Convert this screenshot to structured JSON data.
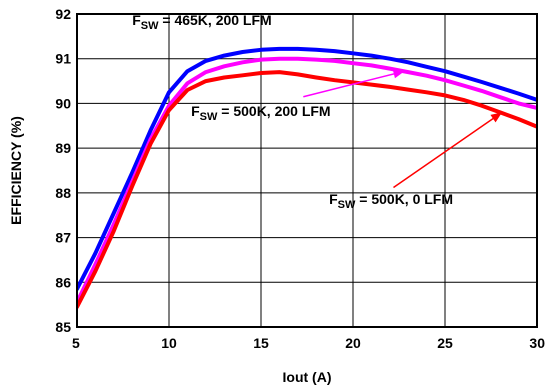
{
  "chart_data": {
    "type": "line",
    "xlabel": "Iout (A)",
    "ylabel": "EFFICIENCY (%)",
    "xlim": [
      5,
      30
    ],
    "ylim": [
      85,
      92
    ],
    "xticks": [
      5,
      10,
      15,
      20,
      25,
      30
    ],
    "yticks": [
      85,
      86,
      87,
      88,
      89,
      90,
      91,
      92
    ],
    "grid": true,
    "series": [
      {
        "name": "FSW = 465K, 200 LFM",
        "color": "#0000ff",
        "x": [
          5,
          6,
          7,
          8,
          9,
          10,
          11,
          12,
          13,
          14,
          15,
          16,
          17,
          18,
          19,
          20,
          21,
          22,
          23,
          24,
          25,
          26,
          27,
          28,
          29,
          30
        ],
        "y": [
          85.85,
          86.65,
          87.55,
          88.45,
          89.4,
          90.25,
          90.72,
          90.95,
          91.07,
          91.15,
          91.2,
          91.22,
          91.22,
          91.2,
          91.17,
          91.12,
          91.07,
          91.0,
          90.92,
          90.82,
          90.72,
          90.6,
          90.48,
          90.35,
          90.22,
          90.08
        ]
      },
      {
        "name": "FSW = 500K, 200 LFM",
        "color": "#ff00ff",
        "x": [
          5,
          6,
          7,
          8,
          9,
          10,
          11,
          12,
          13,
          14,
          15,
          16,
          17,
          18,
          19,
          20,
          21,
          22,
          23,
          24,
          25,
          26,
          27,
          28,
          29,
          30
        ],
        "y": [
          85.55,
          86.4,
          87.3,
          88.25,
          89.2,
          89.95,
          90.45,
          90.7,
          90.83,
          90.92,
          90.98,
          91.0,
          91.0,
          90.98,
          90.95,
          90.9,
          90.85,
          90.78,
          90.7,
          90.62,
          90.52,
          90.4,
          90.28,
          90.14,
          90.0,
          89.9
        ]
      },
      {
        "name": "FSW = 500K, 0 LFM",
        "color": "#ff0000",
        "x": [
          5,
          6,
          7,
          8,
          9,
          10,
          11,
          12,
          13,
          14,
          15,
          16,
          17,
          18,
          19,
          20,
          21,
          22,
          23,
          24,
          25,
          26,
          27,
          28,
          29,
          30
        ],
        "y": [
          85.45,
          86.25,
          87.15,
          88.15,
          89.1,
          89.85,
          90.3,
          90.5,
          90.58,
          90.63,
          90.68,
          90.7,
          90.65,
          90.58,
          90.52,
          90.47,
          90.42,
          90.37,
          90.31,
          90.25,
          90.18,
          90.08,
          89.95,
          89.8,
          89.65,
          89.48
        ]
      }
    ],
    "annotations": [
      {
        "main": "F",
        "sub": "SW",
        "rest": " = 465K, 200 LFM",
        "x": 8.0,
        "y": 91.75
      },
      {
        "main": "F",
        "sub": "SW",
        "rest": " = 500K, 200 LFM",
        "x": 11.2,
        "y": 89.72
      },
      {
        "main": "F",
        "sub": "SW",
        "rest": " = 500K, 0 LFM",
        "x": 18.7,
        "y": 87.75
      }
    ],
    "arrows": [
      {
        "series": "FSW = 500K, 200 LFM",
        "from": [
          17.3,
          90.15
        ],
        "to": [
          22.8,
          90.72
        ]
      },
      {
        "series": "FSW = 500K, 0 LFM",
        "from": [
          22.2,
          88.12
        ],
        "to": [
          28.1,
          89.8
        ]
      }
    ]
  }
}
